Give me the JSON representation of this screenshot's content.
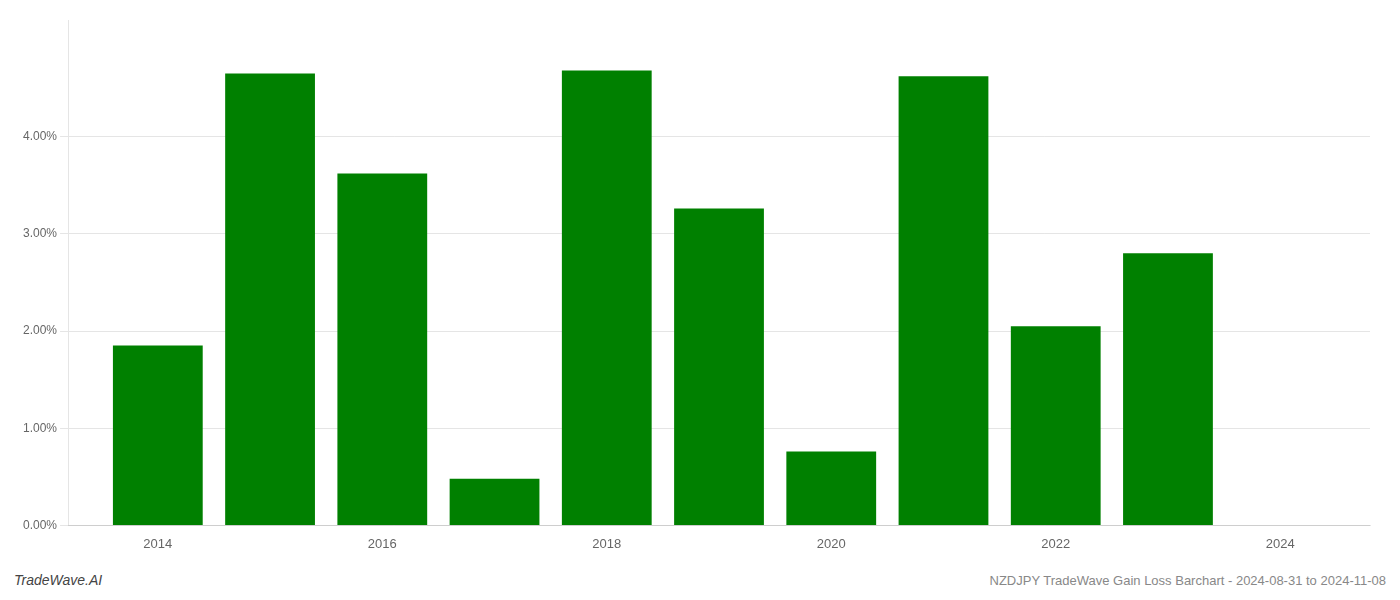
{
  "chart_data": {
    "type": "bar",
    "x": [
      2014,
      2015,
      2016,
      2017,
      2018,
      2019,
      2020,
      2021,
      2022,
      2023
    ],
    "values": [
      0.0185,
      0.0465,
      0.0362,
      0.0048,
      0.0468,
      0.0326,
      0.0076,
      0.0462,
      0.0205,
      0.028
    ],
    "color": "#008000",
    "xlim": [
      2013.2,
      2024.8
    ],
    "xticks": [
      2014,
      2016,
      2018,
      2020,
      2022,
      2024
    ],
    "ylim": [
      0,
      0.052
    ],
    "yticks": [
      {
        "value": 0.0,
        "label": "0.00%"
      },
      {
        "value": 0.01,
        "label": "1.00%"
      },
      {
        "value": 0.02,
        "label": "2.00%"
      },
      {
        "value": 0.03,
        "label": "3.00%"
      },
      {
        "value": 0.04,
        "label": "4.00%"
      }
    ],
    "grid": true,
    "annotations": [
      "TradeWave.AI",
      "NZDJPY TradeWave Gain Loss Barchart - 2024-08-31 to 2024-11-08"
    ]
  }
}
